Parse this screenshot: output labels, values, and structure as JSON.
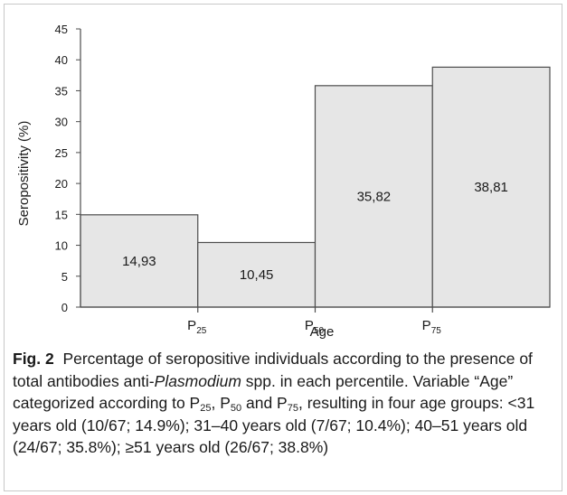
{
  "chart_data": {
    "type": "bar",
    "categories": [
      "<31",
      "31–40",
      "40–51",
      "≥51"
    ],
    "values": [
      14.93,
      10.45,
      35.82,
      38.81
    ],
    "value_labels": [
      "14,93",
      "10,45",
      "35,82",
      "38,81"
    ],
    "ylabel": "Seropositivity (%)",
    "xlabel": "Age",
    "ylim": [
      0,
      45
    ],
    "yticks": [
      0,
      5,
      10,
      15,
      20,
      25,
      30,
      35,
      40,
      45
    ],
    "x_boundaries": [
      {
        "base": "P",
        "sub": "25"
      },
      {
        "base": "P",
        "sub": "50"
      },
      {
        "base": "P",
        "sub": "75"
      }
    ],
    "bar_fill": "#e6e6e6",
    "bar_stroke": "#4d4d4d",
    "grid": false
  },
  "caption": {
    "fig_label": "Fig. 2",
    "text_1": "Percentage of seropositive individuals according to the presence of total antibodies anti-",
    "italic": "Plasmodium",
    "text_2": " spp. in each percentile. Variable “Age” categorized according to P",
    "sub_25": "25",
    "text_3": ", P",
    "sub_50": "50",
    "text_4": " and P",
    "sub_75": "75",
    "text_5": ", resulting in four age groups: <31 years old (10/67; 14.9%); 31–40 years old (7/67; 10.4%); 40–51 years old (24/67; 35.8%); ≥51 years old (26/67; 38.8%)"
  }
}
